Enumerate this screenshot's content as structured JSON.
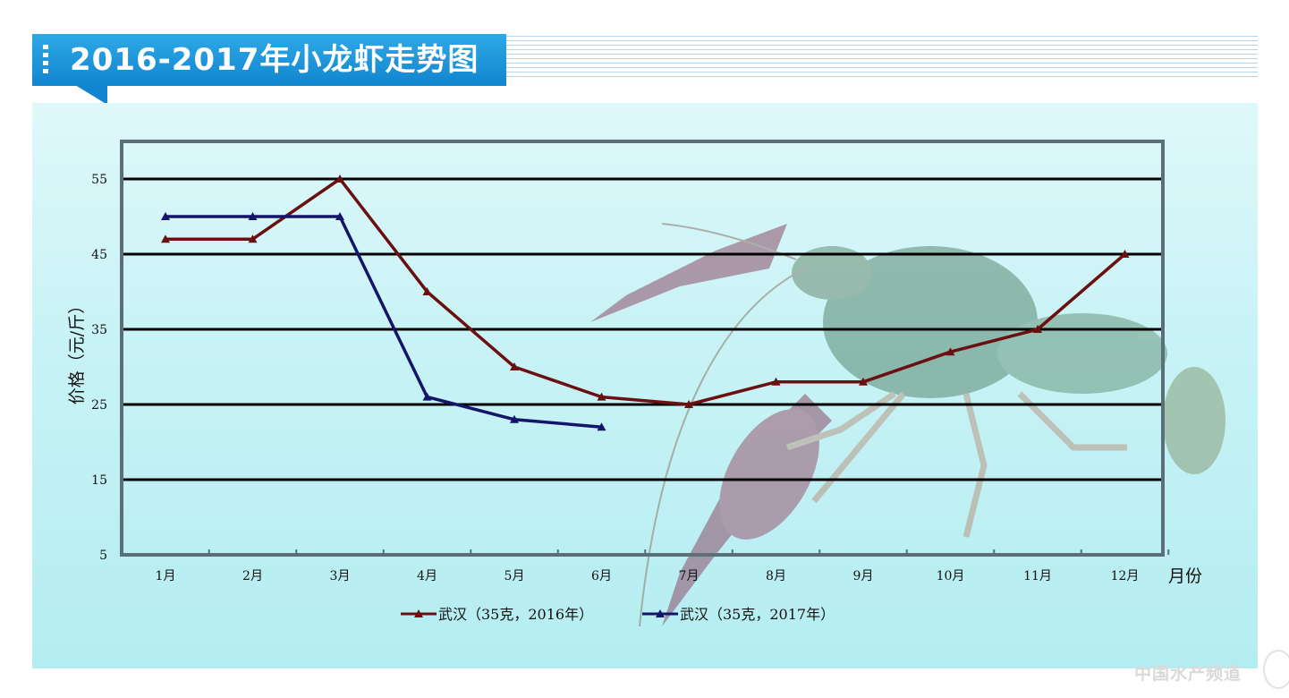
{
  "header": {
    "title": "2016-2017年小龙虾走势图"
  },
  "watermark": {
    "text": "中国水产频道"
  },
  "chart_data": {
    "type": "line",
    "title": "2016-2017年小龙虾走势图",
    "xlabel": "月份",
    "ylabel": "价格（元/斤）",
    "categories": [
      "1月",
      "2月",
      "3月",
      "4月",
      "5月",
      "6月",
      "7月",
      "8月",
      "9月",
      "10月",
      "11月",
      "12月"
    ],
    "yticks": [
      5,
      15,
      25,
      35,
      45,
      55
    ],
    "ylim": [
      5,
      60
    ],
    "grid": true,
    "legend_position": "bottom",
    "series": [
      {
        "name": "武汉（35克，2016年）",
        "color": "#6b1010",
        "values": [
          47,
          47,
          55,
          40,
          30,
          26,
          25,
          28,
          28,
          32,
          35,
          45
        ]
      },
      {
        "name": "武汉（35克，2017年）",
        "color": "#14146a",
        "values": [
          50,
          50,
          50,
          26,
          23,
          22,
          null,
          null,
          null,
          null,
          null,
          null
        ]
      }
    ]
  },
  "decoration": {
    "image": "crayfish-photo"
  }
}
